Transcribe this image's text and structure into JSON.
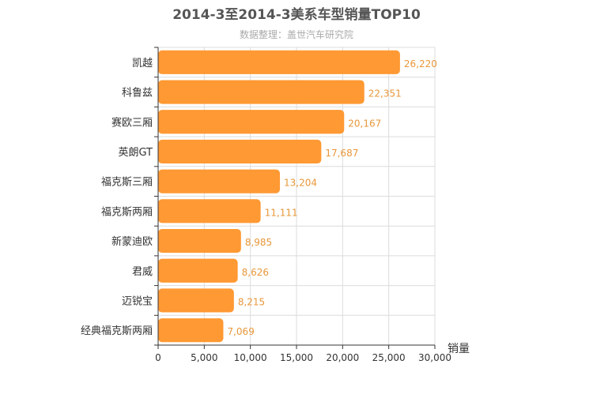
{
  "chart_data": {
    "type": "bar",
    "orientation": "horizontal",
    "title": "2014-3至2014-3美系车型销量TOP10",
    "subtitle": "数据整理：盖世汽车研究院",
    "xlabel": "销量",
    "ylabel": "",
    "xlim": [
      0,
      30000
    ],
    "xticks": [
      0,
      5000,
      10000,
      15000,
      20000,
      25000,
      30000
    ],
    "xtick_labels": [
      "0",
      "5,000",
      "10,000",
      "15,000",
      "20,000",
      "25,000",
      "30,000"
    ],
    "grid": true,
    "legend": "none",
    "bar_color": "#ff9933",
    "label_color": "#e8973a",
    "categories": [
      "凯越",
      "科鲁兹",
      "赛欧三厢",
      "英朗GT",
      "福克斯三厢",
      "福克斯两厢",
      "新蒙迪欧",
      "君威",
      "迈锐宝",
      "经典福克斯两厢"
    ],
    "values": [
      26220,
      22351,
      20167,
      17687,
      13204,
      11111,
      8985,
      8626,
      8215,
      7069
    ],
    "value_labels": [
      "26,220",
      "22,351",
      "20,167",
      "17,687",
      "13,204",
      "11,111",
      "8,985",
      "8,626",
      "8,215",
      "7,069"
    ]
  }
}
